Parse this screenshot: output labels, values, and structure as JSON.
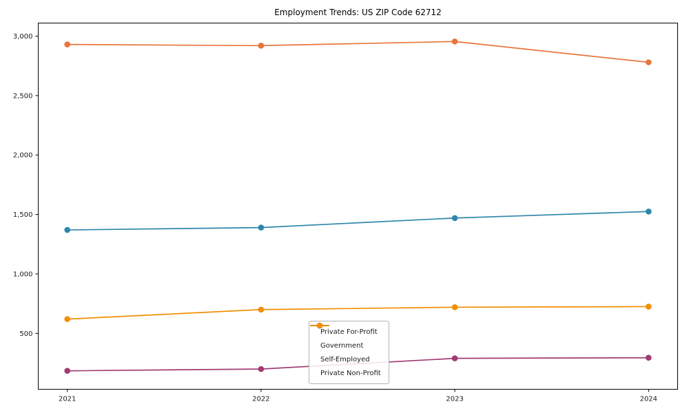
{
  "chart_data": {
    "type": "line",
    "title": "Employment Trends: US ZIP Code 62712",
    "x": [
      2021,
      2022,
      2023,
      2024
    ],
    "x_tick_labels": [
      "2021",
      "2022",
      "2023",
      "2024"
    ],
    "series": [
      {
        "name": "Private For-Profit",
        "color": "#e8743b",
        "values": [
          2930,
          2920,
          2955,
          2780
        ]
      },
      {
        "name": "Government",
        "color": "#2e86ab",
        "values": [
          1370,
          1390,
          1470,
          1525
        ]
      },
      {
        "name": "Self-Employed",
        "color": "#a23b72",
        "values": [
          185,
          200,
          290,
          295
        ]
      },
      {
        "name": "Private Non-Profit",
        "color": "#f18f01",
        "values": [
          620,
          700,
          720,
          725
        ]
      }
    ],
    "yticks": [
      {
        "value": 500,
        "label": "500"
      },
      {
        "value": 1000,
        "label": "1,000"
      },
      {
        "value": 1500,
        "label": "1,500"
      },
      {
        "value": 2000,
        "label": "2,000"
      },
      {
        "value": 2500,
        "label": "2,500"
      },
      {
        "value": 3000,
        "label": "3,000"
      }
    ],
    "xlim": [
      2020.85,
      2024.15
    ],
    "ylim": [
      30,
      3110
    ],
    "grid": false,
    "legend_position": "inside-bottom-center",
    "axis_color": "#000000",
    "text_color": "#1a1a1a",
    "background": "#ffffff"
  }
}
